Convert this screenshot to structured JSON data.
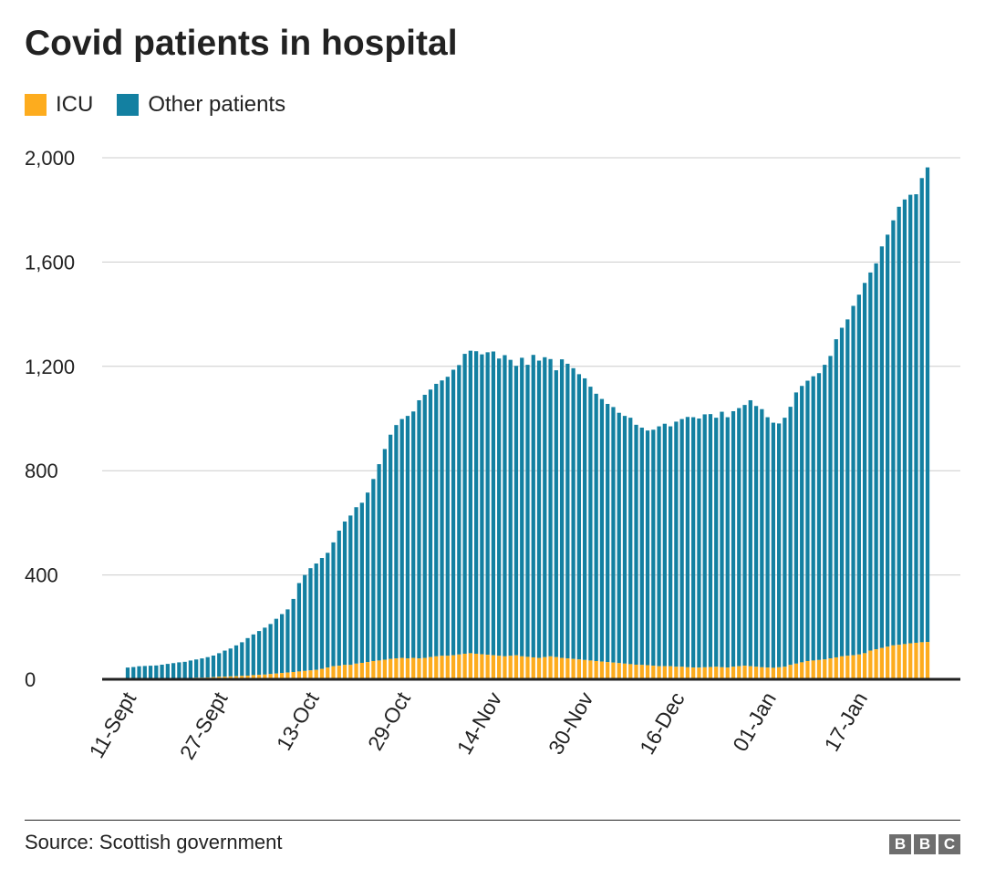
{
  "title": "Covid patients in hospital",
  "legend": [
    {
      "label": "ICU",
      "color": "#fdac1e"
    },
    {
      "label": "Other patients",
      "color": "#1380a1"
    }
  ],
  "source": "Source: Scottish government",
  "logo": [
    "B",
    "B",
    "C"
  ],
  "chart_data": {
    "type": "bar",
    "stacked": true,
    "title": "Covid patients in hospital",
    "xlabel": "",
    "ylabel": "",
    "ylim": [
      0,
      2000
    ],
    "yticks": [
      0,
      400,
      800,
      1200,
      1600,
      2000
    ],
    "ytick_labels": [
      "0",
      "400",
      "800",
      "1,200",
      "1,600",
      "2,000"
    ],
    "xtick_labels": [
      "11-Sept",
      "27-Sept",
      "13-Oct",
      "29-Oct",
      "14-Nov",
      "30-Nov",
      "16-Dec",
      "01-Jan",
      "17-Jan"
    ],
    "xtick_every": 16,
    "grid": true,
    "legend_position": "top-left",
    "series": [
      {
        "name": "ICU",
        "color": "#fdac1e",
        "values": [
          3,
          3,
          3,
          3,
          3,
          3,
          3,
          4,
          4,
          4,
          4,
          5,
          6,
          6,
          7,
          8,
          10,
          10,
          11,
          12,
          13,
          14,
          16,
          17,
          18,
          20,
          22,
          24,
          26,
          28,
          30,
          32,
          34,
          36,
          40,
          45,
          50,
          52,
          55,
          55,
          60,
          63,
          66,
          70,
          72,
          75,
          78,
          80,
          82,
          80,
          82,
          80,
          82,
          85,
          88,
          90,
          90,
          92,
          95,
          98,
          100,
          98,
          96,
          94,
          92,
          90,
          88,
          90,
          92,
          88,
          86,
          84,
          82,
          85,
          88,
          85,
          82,
          80,
          78,
          76,
          74,
          72,
          70,
          68,
          66,
          64,
          62,
          60,
          58,
          56,
          55,
          54,
          52,
          50,
          50,
          50,
          48,
          48,
          46,
          45,
          45,
          46,
          47,
          48,
          46,
          45,
          48,
          50,
          52,
          50,
          48,
          46,
          45,
          44,
          46,
          48,
          55,
          60,
          65,
          70,
          72,
          74,
          76,
          80,
          84,
          88,
          90,
          92,
          95,
          100,
          110,
          115,
          120,
          125,
          130,
          132,
          135,
          138,
          140,
          142,
          143
        ]
      },
      {
        "name": "Other patients",
        "color": "#1380a1",
        "values": [
          42,
          44,
          47,
          48,
          49,
          50,
          53,
          55,
          58,
          61,
          63,
          67,
          70,
          74,
          78,
          83,
          90,
          100,
          107,
          118,
          129,
          144,
          156,
          168,
          180,
          192,
          210,
          226,
          242,
          280,
          339,
          368,
          392,
          408,
          425,
          440,
          475,
          518,
          550,
          573,
          600,
          614,
          650,
          698,
          753,
          808,
          860,
          895,
          916,
          930,
          945,
          990,
          1009,
          1026,
          1045,
          1056,
          1070,
          1095,
          1110,
          1150,
          1160,
          1160,
          1150,
          1160,
          1165,
          1140,
          1155,
          1135,
          1110,
          1145,
          1120,
          1160,
          1140,
          1150,
          1140,
          1100,
          1145,
          1130,
          1115,
          1094,
          1080,
          1050,
          1025,
          1007,
          990,
          980,
          960,
          950,
          945,
          920,
          910,
          900,
          905,
          920,
          930,
          920,
          940,
          950,
          960,
          960,
          955,
          970,
          970,
          955,
          980,
          960,
          980,
          990,
          1000,
          1020,
          1000,
          990,
          960,
          940,
          935,
          955,
          990,
          1040,
          1060,
          1075,
          1090,
          1100,
          1130,
          1160,
          1220,
          1260,
          1290,
          1340,
          1380,
          1420,
          1450,
          1480,
          1540,
          1580,
          1630,
          1680,
          1705,
          1720,
          1720,
          1780,
          1820
        ]
      }
    ]
  }
}
